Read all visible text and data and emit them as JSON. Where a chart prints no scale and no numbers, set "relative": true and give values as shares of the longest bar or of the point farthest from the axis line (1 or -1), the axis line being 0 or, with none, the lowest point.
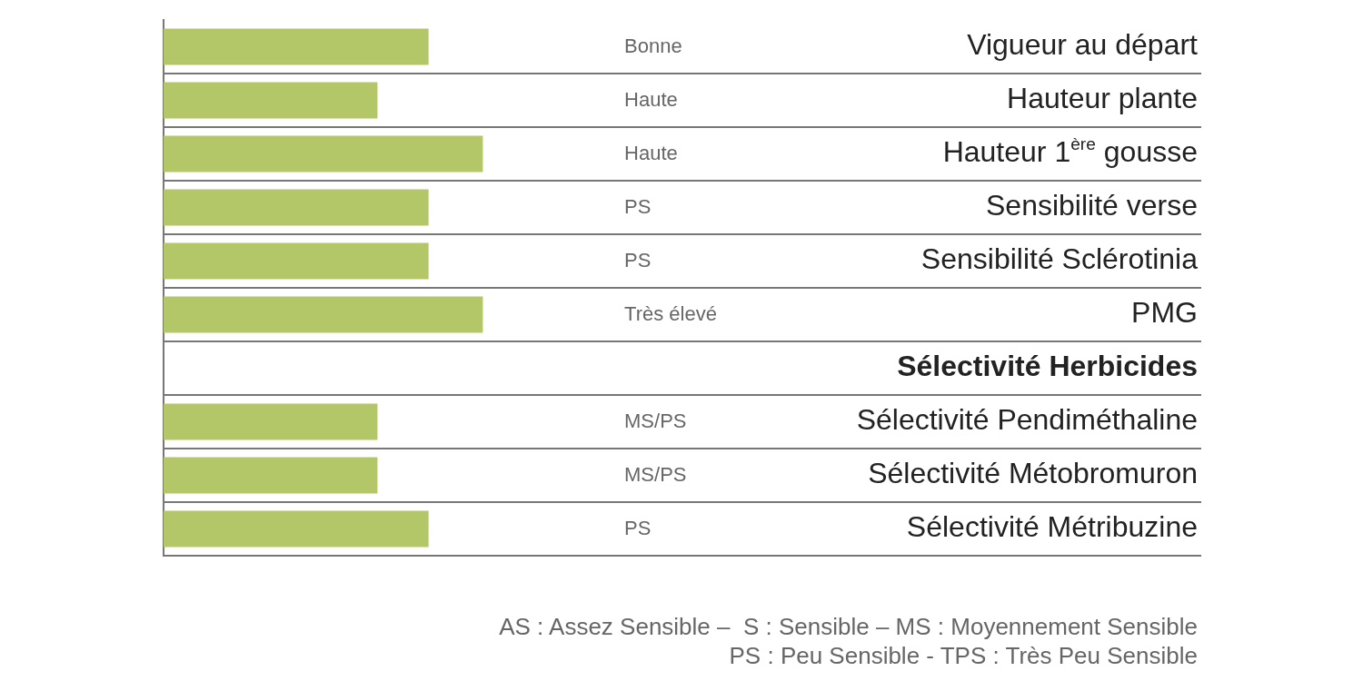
{
  "chart_data": {
    "type": "bar",
    "orientation": "horizontal",
    "relative": true,
    "grid": "y",
    "legend": false,
    "categories": [
      "Vigueur au départ",
      "Hauteur plante",
      "Hauteur 1$^{ère}$ gousse",
      "Sensibilité verse",
      "Sensibilité Sclérotinia",
      "PMG",
      "Sélectivité Herbicides",
      "Sélectivité Pendiméthaline",
      "Sélectivité Métobromuron",
      "Sélectivité Métribuzine"
    ],
    "series": [
      {
        "color": "#b3c768",
        "values": [
          0.83,
          0.67,
          1,
          0.83,
          0.83,
          1,
          null,
          0.67,
          0.67,
          0.83
        ]
      }
    ],
    "annotations": [
      "Bonne",
      "Haute",
      "Haute",
      "PS",
      "PS",
      "Très élevé",
      "MS/PS",
      "MS/PS",
      "PS",
      "AS : Assez Sensible –  S : Sensible – MS : Moyennement Sensible",
      "PS : Peu Sensible - TPS : Très Peu Sensible"
    ]
  }
}
